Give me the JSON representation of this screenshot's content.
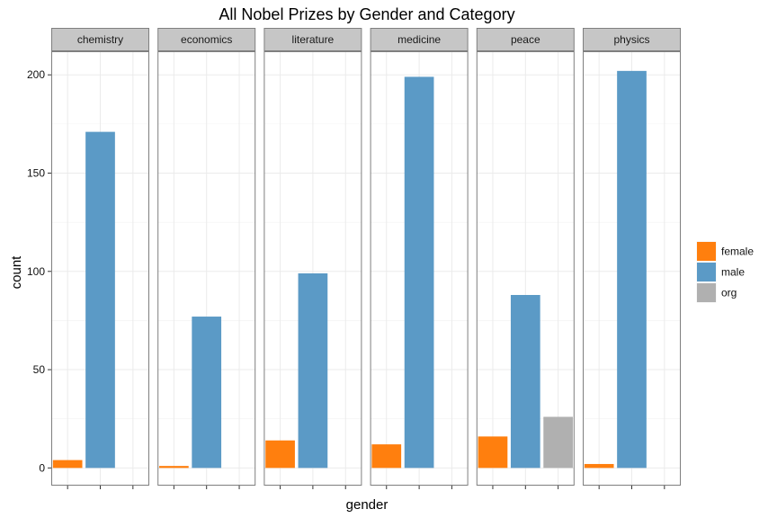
{
  "chart_data": {
    "type": "bar",
    "title": "All Nobel Prizes by Gender and Category",
    "xlabel": "gender",
    "ylabel": "count",
    "ylim": [
      -9,
      212
    ],
    "yticks": [
      0,
      50,
      100,
      150,
      200
    ],
    "x_tick_labels": [
      "",
      "",
      ""
    ],
    "grid": true,
    "legend_position": "right",
    "categories": [
      "female",
      "male",
      "org"
    ],
    "colors": {
      "female": "#ff7f0e",
      "male": "#5b9ac6",
      "org": "#b0b0b0"
    },
    "facets": [
      {
        "name": "chemistry",
        "values": [
          4,
          171,
          0
        ]
      },
      {
        "name": "economics",
        "values": [
          1,
          77,
          0
        ]
      },
      {
        "name": "literature",
        "values": [
          14,
          99,
          0
        ]
      },
      {
        "name": "medicine",
        "values": [
          12,
          199,
          0
        ]
      },
      {
        "name": "peace",
        "values": [
          16,
          88,
          26
        ]
      },
      {
        "name": "physics",
        "values": [
          2,
          202,
          0
        ]
      }
    ],
    "legend": [
      "female",
      "male",
      "org"
    ]
  }
}
